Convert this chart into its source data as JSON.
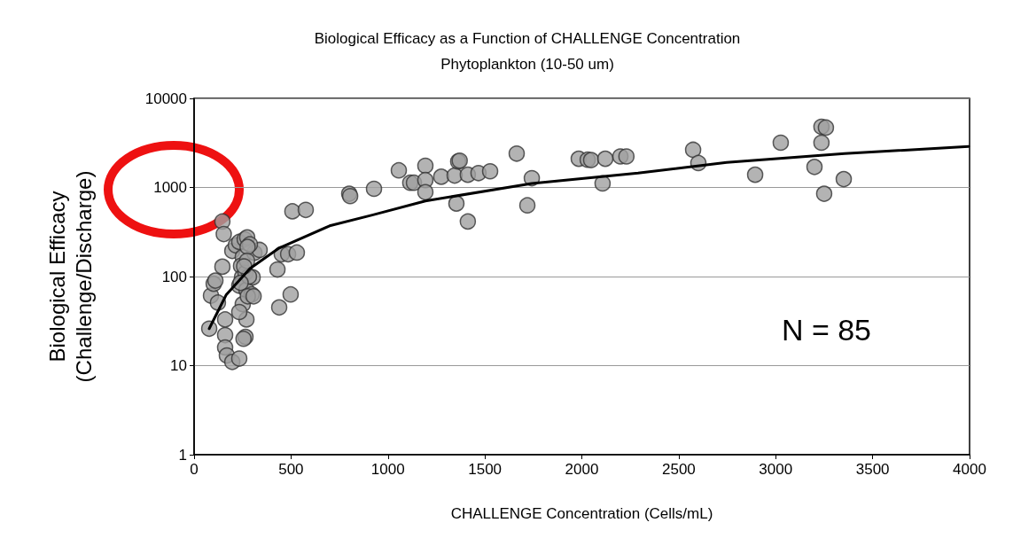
{
  "chart_data": {
    "type": "scatter",
    "title": "Biological Efficacy as a Function of CHALLENGE Concentration",
    "subtitle": "Phytoplankton (10-50 um)",
    "xlabel": "CHALLENGE Concentration (Cells/mL)",
    "ylabel": "Biological Efficacy\n(Challenge/Discharge)",
    "annotations": [
      "N = 85"
    ],
    "log": "y",
    "grid": "y",
    "marker": "circle",
    "xlim": [
      0,
      4000
    ],
    "xticks": [
      0,
      500,
      1000,
      1500,
      2000,
      2500,
      3000,
      3500,
      4000
    ],
    "ylim": [
      1,
      10000
    ],
    "yticks": [
      1,
      10,
      100,
      1000,
      10000
    ],
    "series": [
      {
        "color": "#a0a0a0",
        "x": [
          78,
          87,
          101,
          110,
          123,
          146,
          146,
          160,
          160,
          160,
          169,
          197,
          233,
          197,
          215,
          233,
          261,
          274,
          251,
          242,
          247,
          233,
          265,
          270,
          251,
          297,
          270,
          265,
          311,
          338,
          302,
          288,
          276,
          153,
          273,
          283,
          258,
          240,
          277,
          233,
          255,
          430,
          307,
          507,
          576,
          439,
          498,
          452,
          485,
          530,
          800,
          805,
          928,
          1056,
          1115,
          1134,
          1193,
          1193,
          1193,
          1275,
          1344,
          1362,
          1370,
          1353,
          1412,
          1412,
          1467,
          1527,
          1664,
          1742,
          1719,
          1984,
          2030,
          2048,
          2107,
          2121,
          2199,
          2230,
          2574,
          2601,
          2894,
          3026,
          3236,
          3259,
          3236,
          3200,
          3250,
          3351
        ],
        "values": [
          26,
          61,
          83,
          90,
          51,
          415,
          129,
          33,
          22,
          16,
          13,
          11,
          12,
          194,
          224,
          245,
          262,
          275,
          166,
          132,
          98,
          79,
          110,
          71,
          49,
          63,
          33,
          21,
          185,
          199,
          98,
          230,
          215,
          300,
          150,
          100,
          130,
          85,
          60,
          40,
          20,
          120,
          60,
          540,
          560,
          45,
          63,
          178,
          178,
          186,
          850,
          800,
          966,
          1556,
          1130,
          1130,
          1750,
          1210,
          885,
          1320,
          1360,
          1960,
          2000,
          660,
          415,
          1390,
          1450,
          1520,
          2400,
          1270,
          630,
          2100,
          2050,
          2030,
          1110,
          2100,
          2230,
          2230,
          2650,
          1880,
          1390,
          3180,
          4800,
          4700,
          3180,
          1700,
          850,
          1240
        ]
      },
      {
        "type": "line",
        "color": "#000000",
        "marker": "none",
        "x": [
          78,
          165,
          288,
          439,
          699,
          919,
          1193,
          1742,
          2290,
          2747,
          3355,
          3995
        ],
        "values": [
          26,
          62,
          123,
          209,
          371,
          490,
          705,
          1110,
          1450,
          1910,
          2400,
          2890
        ]
      }
    ]
  }
}
